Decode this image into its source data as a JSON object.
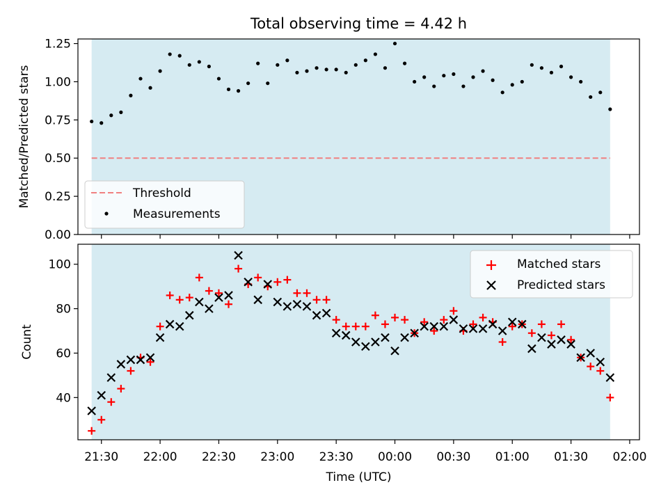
{
  "chart_data": {
    "title": "Total observing time = 4.42 h",
    "xlabel": "Time (UTC)",
    "x_ticks": [
      "21:30",
      "22:00",
      "22:30",
      "23:00",
      "23:30",
      "00:00",
      "00:30",
      "01:00",
      "01:30",
      "02:00"
    ],
    "x_tick_minutes": [
      1290,
      1320,
      1350,
      1380,
      1410,
      1440,
      1470,
      1500,
      1530,
      1560
    ],
    "x_range_minutes": [
      1278,
      1565
    ],
    "shaded_span_minutes": [
      1285,
      1550
    ],
    "shade_color": "#add8e6",
    "times_minutes": [
      1285,
      1290,
      1295,
      1300,
      1305,
      1310,
      1315,
      1320,
      1325,
      1330,
      1335,
      1340,
      1345,
      1350,
      1355,
      1360,
      1365,
      1370,
      1375,
      1380,
      1385,
      1390,
      1395,
      1400,
      1405,
      1410,
      1415,
      1420,
      1425,
      1430,
      1435,
      1440,
      1445,
      1450,
      1455,
      1460,
      1465,
      1470,
      1475,
      1480,
      1485,
      1490,
      1495,
      1500,
      1505,
      1510,
      1515,
      1520,
      1525,
      1530,
      1535,
      1540,
      1545,
      1550
    ],
    "panels": [
      {
        "type": "scatter",
        "ylabel": "Matched/Predicted stars",
        "ylim": [
          0,
          1.28
        ],
        "y_ticks": [
          "0.00",
          "0.25",
          "0.50",
          "0.75",
          "1.00",
          "1.25"
        ],
        "y_tick_values": [
          0,
          0.25,
          0.5,
          0.75,
          1.0,
          1.25
        ],
        "threshold": {
          "name": "Threshold",
          "value": 0.5,
          "color": "#f08080"
        },
        "series": [
          {
            "name": "Measurements",
            "color": "#000000",
            "marker": "dot",
            "values": [
              0.74,
              0.73,
              0.78,
              0.8,
              0.91,
              1.02,
              0.96,
              1.07,
              1.18,
              1.17,
              1.11,
              1.13,
              1.1,
              1.02,
              0.95,
              0.94,
              0.99,
              1.12,
              0.99,
              1.11,
              1.14,
              1.06,
              1.07,
              1.09,
              1.08,
              1.08,
              1.06,
              1.11,
              1.14,
              1.18,
              1.09,
              1.25,
              1.12,
              1.0,
              1.03,
              0.97,
              1.04,
              1.05,
              0.97,
              1.03,
              1.07,
              1.01,
              0.93,
              0.98,
              1.0,
              1.11,
              1.09,
              1.06,
              1.1,
              1.03,
              1.0,
              0.9,
              0.93,
              0.82
            ]
          }
        ],
        "legend_position": "lower-left"
      },
      {
        "type": "scatter",
        "ylabel": "Count",
        "ylim": [
          21,
          109
        ],
        "y_ticks": [
          "40",
          "60",
          "80",
          "100"
        ],
        "y_tick_values": [
          40,
          60,
          80,
          100
        ],
        "series": [
          {
            "name": "Matched stars",
            "color": "#ff0000",
            "marker": "plus",
            "values": [
              25,
              30,
              38,
              44,
              52,
              58,
              56,
              72,
              86,
              84,
              85,
              94,
              88,
              87,
              82,
              98,
              91,
              94,
              90,
              92,
              93,
              87,
              87,
              84,
              84,
              75,
              72,
              72,
              72,
              77,
              73,
              76,
              75,
              69,
              74,
              70,
              75,
              79,
              70,
              73,
              76,
              74,
              65,
              72,
              73,
              69,
              73,
              68,
              73,
              66,
              58,
              54,
              52,
              40
            ]
          },
          {
            "name": "Predicted stars",
            "color": "#000000",
            "marker": "x",
            "values": [
              34,
              41,
              49,
              55,
              57,
              57,
              58,
              67,
              73,
              72,
              77,
              83,
              80,
              85,
              86,
              104,
              92,
              84,
              91,
              83,
              81,
              82,
              81,
              77,
              78,
              69,
              68,
              65,
              63,
              65,
              67,
              61,
              67,
              69,
              72,
              72,
              72,
              75,
              71,
              71,
              71,
              73,
              70,
              74,
              73,
              62,
              67,
              64,
              66,
              64,
              58,
              60,
              56,
              49
            ]
          }
        ],
        "legend_position": "upper-right"
      }
    ]
  }
}
